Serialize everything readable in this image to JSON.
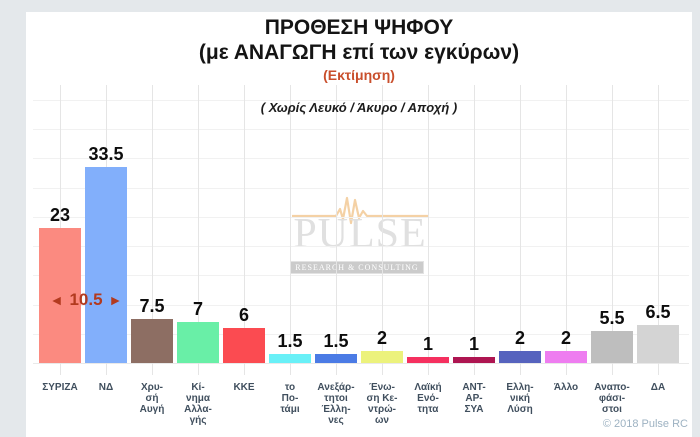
{
  "page": {
    "background_color": "#E4E8EB",
    "card_color": "#FFFFFF",
    "copyright": "© 2018 Pulse RC"
  },
  "header": {
    "title": "ΠΡΟΘΕΣΗ ΨΗΦΟΥ",
    "subtitle": "(με ΑΝΑΓΩΓΗ επί των εγκύρων)",
    "estimate": "(Εκτίμηση)",
    "estimate_color": "#C94F2C",
    "note": "( Χωρίς Λευκό / Άκυρο / Αποχή )"
  },
  "diff_marker": {
    "left_arrow": "◄",
    "value": "10.5",
    "right_arrow": "►",
    "color": "#B23A1F"
  },
  "watermark": {
    "name": "PULSE",
    "tagline": "RESEARCH & CONSULTING",
    "line_color": "#F3CFA0",
    "text_color": "#E0E0E0"
  },
  "chart_data": {
    "type": "bar",
    "title": "ΠΡΟΘΕΣΗ ΨΗΦΟΥ (με ΑΝΑΓΩΓΗ επί των εγκύρων) (Εκτίμηση)",
    "subtitle": "( Χωρίς Λευκό / Άκυρο / Αποχή )",
    "xlabel": "",
    "ylabel": "",
    "ylim": [
      0,
      45
    ],
    "gridline_step": 5,
    "grid": true,
    "legend": false,
    "categories": [
      "ΣΥΡΙΖΑ",
      "ΝΔ",
      "Χρυσή Αυγή",
      "Κίνημα Αλλαγής",
      "ΚΚΕ",
      "το Ποτάμι",
      "Ανεξάρτητοι Έλληνες",
      "Ένωση Κεντρώων",
      "Λαϊκή Ενότητα",
      "ΑΝΤ-ΑΡ-ΣΥΑ",
      "Ελληνική Λύση",
      "Άλλο",
      "Αναποφάσιστοι",
      "ΔΑ"
    ],
    "values": [
      23,
      33.5,
      7.5,
      7,
      6,
      1.5,
      1.5,
      2,
      1,
      1,
      2,
      2,
      5.5,
      6.5
    ],
    "annotation": {
      "text": "◄ 10.5 ►",
      "meaning_between": [
        "ΣΥΡΙΖΑ",
        "ΝΔ"
      ]
    },
    "bars": [
      {
        "label_lines": [
          "ΣΥΡΙΖΑ"
        ],
        "value_display": "23",
        "value": 23,
        "color": "#FB8A80"
      },
      {
        "label_lines": [
          "ΝΔ"
        ],
        "value_display": "33.5",
        "value": 33.5,
        "color": "#82AFFB"
      },
      {
        "label_lines": [
          "Χρυ-",
          "σή",
          "Αυγή"
        ],
        "value_display": "7.5",
        "value": 7.5,
        "color": "#8D6E63"
      },
      {
        "label_lines": [
          "Κί-",
          "νημα",
          "Αλλα-",
          "γής"
        ],
        "value_display": "7",
        "value": 7,
        "color": "#69EFA7"
      },
      {
        "label_lines": [
          "ΚΚΕ"
        ],
        "value_display": "6",
        "value": 6,
        "color": "#FB4B51"
      },
      {
        "label_lines": [
          "το",
          "Πο-",
          "τάμι"
        ],
        "value_display": "1.5",
        "value": 1.5,
        "color": "#69F0F7"
      },
      {
        "label_lines": [
          "Ανεξάρ-",
          "τητοι",
          "Έλλη-",
          "νες"
        ],
        "value_display": "1.5",
        "value": 1.5,
        "color": "#4B7BE5"
      },
      {
        "label_lines": [
          "Ένω-",
          "ση Κε-",
          "ντρώ-",
          "ων"
        ],
        "value_display": "2",
        "value": 2,
        "color": "#ECF27C"
      },
      {
        "label_lines": [
          "Λαϊκή",
          "Ενό-",
          "τητα"
        ],
        "value_display": "1",
        "value": 1,
        "color": "#F5305F"
      },
      {
        "label_lines": [
          "ΑΝΤ-",
          "ΑΡ-",
          "ΣΥΑ"
        ],
        "value_display": "1",
        "value": 1,
        "color": "#AE1551"
      },
      {
        "label_lines": [
          "Ελλη-",
          "νική",
          "Λύση"
        ],
        "value_display": "2",
        "value": 2,
        "color": "#5663BE"
      },
      {
        "label_lines": [
          "Άλλο"
        ],
        "value_display": "2",
        "value": 2,
        "color": "#EE7DF0"
      },
      {
        "label_lines": [
          "Αναπο-",
          "φάσι-",
          "στοι"
        ],
        "value_display": "5.5",
        "value": 5.5,
        "color": "#BEBEBE"
      },
      {
        "label_lines": [
          "ΔΑ"
        ],
        "value_display": "6.5",
        "value": 6.5,
        "color": "#D4D4D4"
      }
    ]
  }
}
